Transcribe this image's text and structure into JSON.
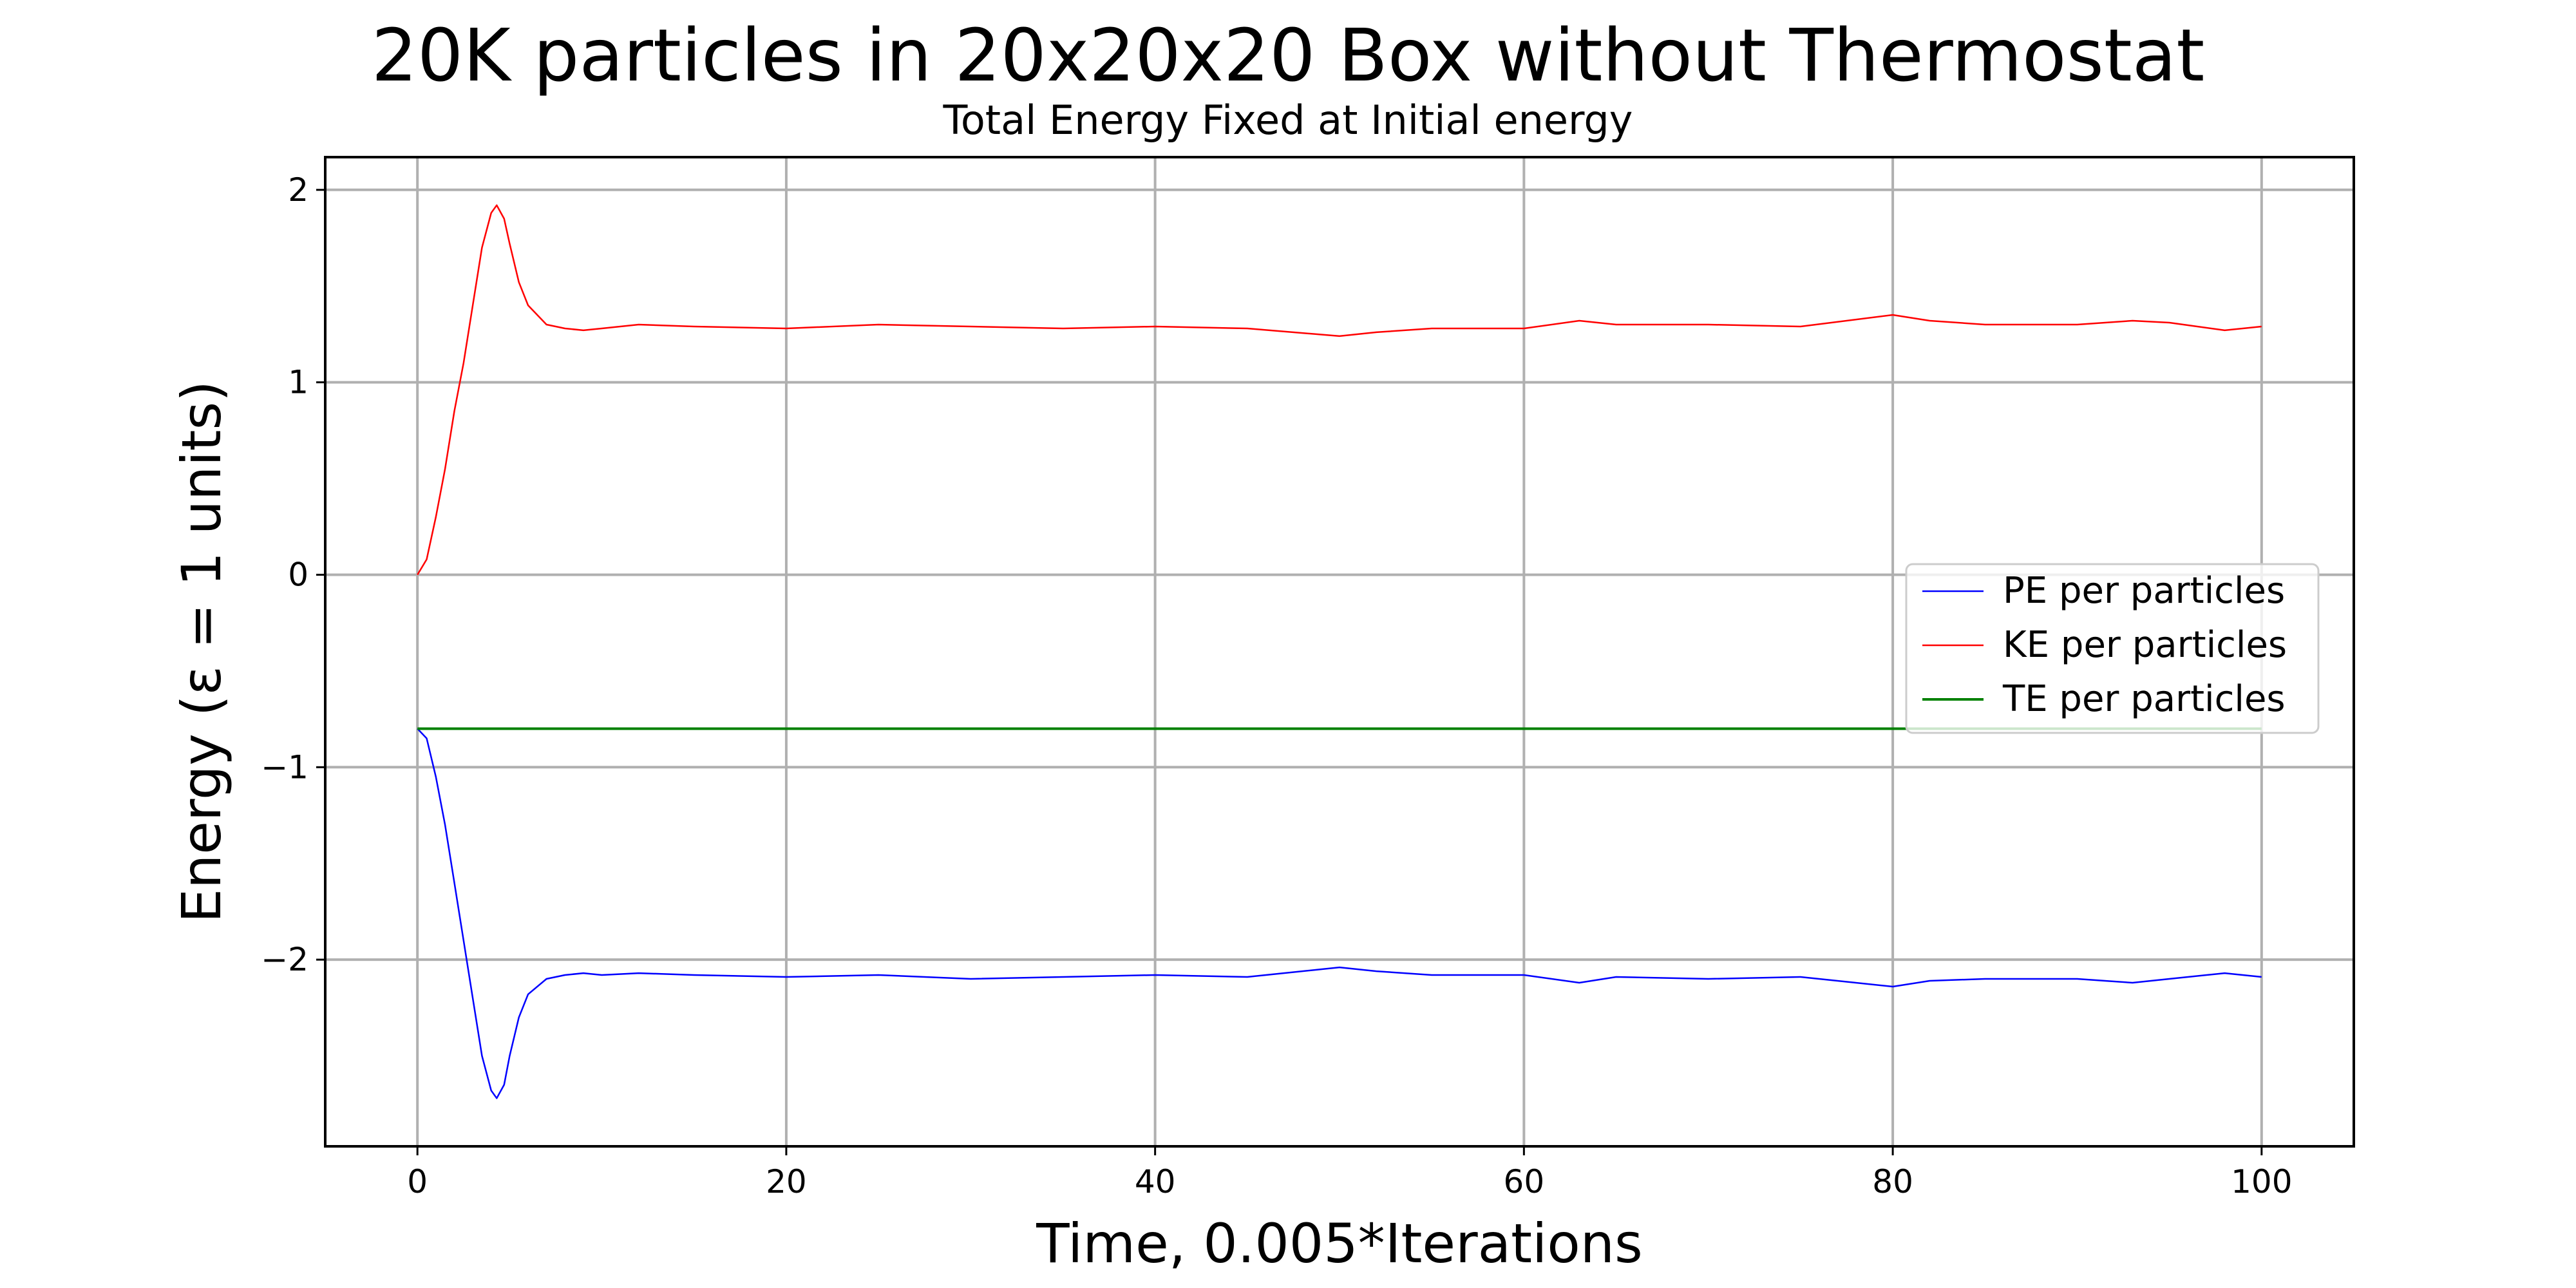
{
  "chart_data": {
    "type": "line",
    "title": "20K particles in 20x20x20 Box without Thermostat",
    "subtitle": "Total Energy Fixed at Initial energy",
    "xlabel": "Time, 0.005*Iterations",
    "ylabel": "Energy (ε = 1 units)",
    "xlim": [
      -5,
      105
    ],
    "ylim": [
      -2.97,
      2.17
    ],
    "xticks": [
      0,
      20,
      40,
      60,
      80,
      100
    ],
    "yticks": [
      -2,
      -1,
      0,
      1,
      2
    ],
    "xtick_labels": [
      "0",
      "20",
      "40",
      "60",
      "80",
      "100"
    ],
    "ytick_labels": [
      "−2",
      "−1",
      "0",
      "1",
      "2"
    ],
    "grid": true,
    "legend_position": "center-right",
    "series": [
      {
        "name": "PE per particles",
        "color": "#0000ff",
        "x": [
          0,
          0.5,
          1,
          1.5,
          2,
          2.5,
          3,
          3.5,
          4,
          4.3,
          4.7,
          5,
          5.5,
          6,
          7,
          8,
          9,
          10,
          12,
          15,
          20,
          25,
          30,
          35,
          40,
          45,
          50,
          52,
          55,
          60,
          63,
          65,
          70,
          75,
          80,
          82,
          85,
          90,
          93,
          95,
          98,
          100
        ],
        "y": [
          -0.8,
          -0.85,
          -1.05,
          -1.3,
          -1.6,
          -1.9,
          -2.2,
          -2.5,
          -2.68,
          -2.72,
          -2.65,
          -2.5,
          -2.3,
          -2.18,
          -2.1,
          -2.08,
          -2.07,
          -2.08,
          -2.07,
          -2.08,
          -2.09,
          -2.08,
          -2.1,
          -2.09,
          -2.08,
          -2.09,
          -2.04,
          -2.06,
          -2.08,
          -2.08,
          -2.12,
          -2.09,
          -2.1,
          -2.09,
          -2.14,
          -2.11,
          -2.1,
          -2.1,
          -2.12,
          -2.1,
          -2.07,
          -2.09
        ]
      },
      {
        "name": "KE per particles",
        "color": "#ff0000",
        "x": [
          0,
          0.5,
          1,
          1.5,
          2,
          2.5,
          3,
          3.5,
          4,
          4.3,
          4.7,
          5,
          5.5,
          6,
          7,
          8,
          9,
          10,
          12,
          15,
          20,
          25,
          30,
          35,
          40,
          45,
          50,
          52,
          55,
          60,
          63,
          65,
          70,
          75,
          80,
          82,
          85,
          90,
          93,
          95,
          98,
          100
        ],
        "y": [
          0.0,
          0.08,
          0.3,
          0.55,
          0.85,
          1.1,
          1.4,
          1.7,
          1.88,
          1.92,
          1.85,
          1.72,
          1.52,
          1.4,
          1.3,
          1.28,
          1.27,
          1.28,
          1.3,
          1.29,
          1.28,
          1.3,
          1.29,
          1.28,
          1.29,
          1.28,
          1.24,
          1.26,
          1.28,
          1.28,
          1.32,
          1.3,
          1.3,
          1.29,
          1.35,
          1.32,
          1.3,
          1.3,
          1.32,
          1.31,
          1.27,
          1.29
        ]
      },
      {
        "name": "TE per particles",
        "color": "#008000",
        "x": [
          0,
          100
        ],
        "y": [
          -0.8,
          -0.8
        ]
      }
    ]
  }
}
